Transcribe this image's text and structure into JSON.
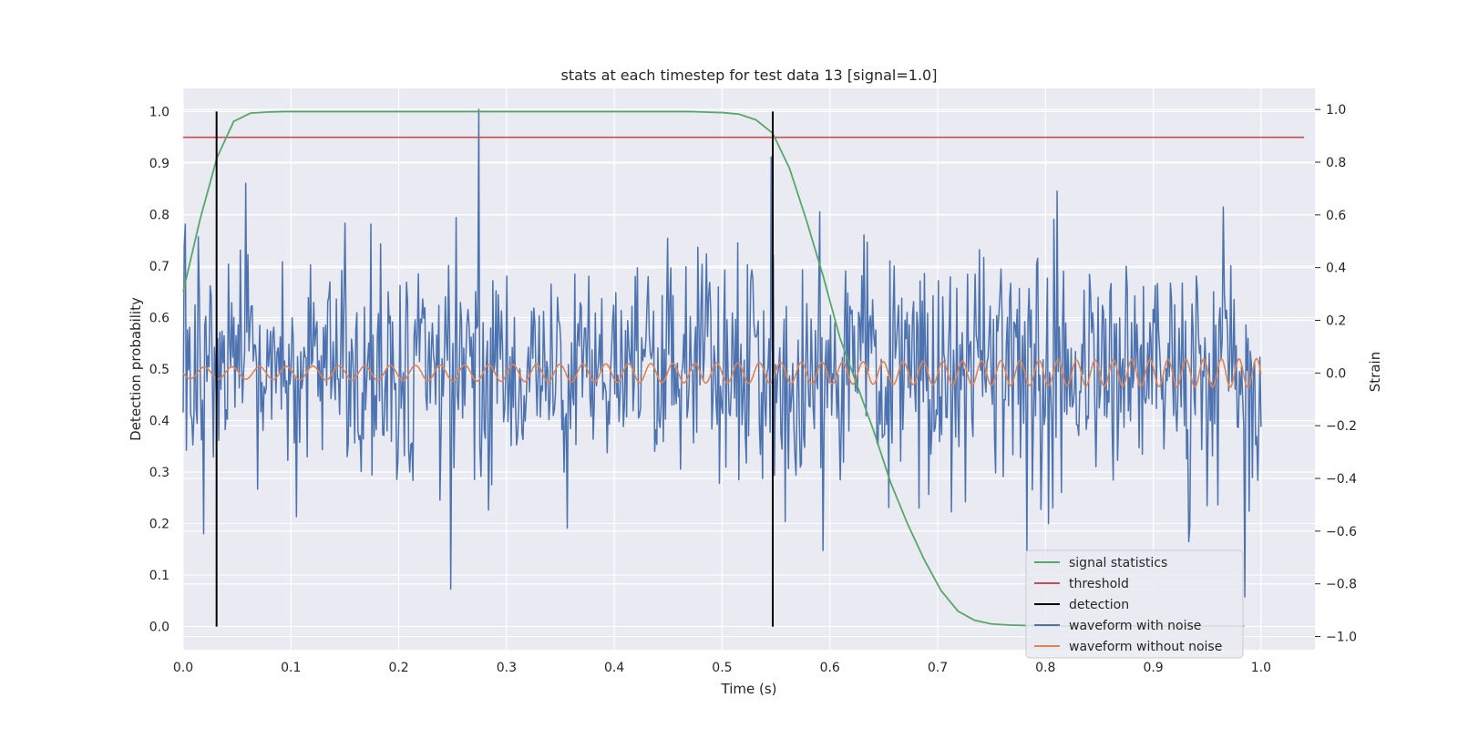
{
  "chart_data": {
    "type": "line",
    "title": "stats at each timestep for test data 13 [signal=1.0]",
    "xlabel": "Time (s)",
    "ylabel_left": "Detection probability",
    "ylabel_right": "Strain",
    "xlim": [
      0.0,
      1.05
    ],
    "ylim_left": [
      -0.045,
      1.045
    ],
    "ylim_right": [
      -1.05,
      1.08
    ],
    "x_ticks": [
      0.0,
      0.1,
      0.2,
      0.3,
      0.4,
      0.5,
      0.6,
      0.7,
      0.8,
      0.9,
      1.0
    ],
    "x_tick_labels": [
      "0.0",
      "0.1",
      "0.2",
      "0.3",
      "0.4",
      "0.5",
      "0.6",
      "0.7",
      "0.8",
      "0.9",
      "1.0"
    ],
    "y_left_ticks": [
      0.0,
      0.1,
      0.2,
      0.3,
      0.4,
      0.5,
      0.6,
      0.7,
      0.8,
      0.9,
      1.0
    ],
    "y_left_tick_labels": [
      "0.0",
      "0.1",
      "0.2",
      "0.3",
      "0.4",
      "0.5",
      "0.6",
      "0.7",
      "0.8",
      "0.9",
      "1.0"
    ],
    "y_right_ticks": [
      -1.0,
      -0.8,
      -0.6,
      -0.4,
      -0.2,
      0.0,
      0.2,
      0.4,
      0.6,
      0.8,
      1.0
    ],
    "y_right_tick_labels": [
      "−1.0",
      "−0.8",
      "−0.6",
      "−0.4",
      "−0.2",
      "0.0",
      "0.2",
      "0.4",
      "0.6",
      "0.8",
      "1.0"
    ],
    "grid": true,
    "legend_placement": "lower-right",
    "colors": {
      "background": "#eaeaf2",
      "grid": "#ffffff",
      "signal_statistics": "#55a868",
      "threshold": "#c44e52",
      "detection": "#000000",
      "waveform_with_noise": "#4c72b0",
      "waveform_without_noise": "#dd8452"
    },
    "series": [
      {
        "name": "signal statistics",
        "axis": "left",
        "x": [
          0.0,
          0.0156,
          0.0313,
          0.0469,
          0.0625,
          0.0781,
          0.0938,
          0.1094,
          0.125,
          0.1406,
          0.1563,
          0.1719,
          0.1875,
          0.2031,
          0.2188,
          0.2344,
          0.25,
          0.2656,
          0.2813,
          0.2969,
          0.3125,
          0.3281,
          0.3438,
          0.3594,
          0.375,
          0.3906,
          0.4063,
          0.4219,
          0.4375,
          0.4531,
          0.4688,
          0.4844,
          0.5,
          0.5156,
          0.5313,
          0.5469,
          0.5625,
          0.5781,
          0.5938,
          0.6094,
          0.625,
          0.6406,
          0.6563,
          0.6719,
          0.6875,
          0.7031,
          0.7188,
          0.7344,
          0.75,
          0.7656,
          0.7813,
          0.7969,
          0.8125,
          0.8281,
          0.8438,
          0.8594,
          0.875,
          0.8906,
          0.9063,
          0.9219,
          0.9375,
          0.9531,
          0.9688,
          0.9844
        ],
        "values": [
          0.65,
          0.79,
          0.91,
          0.981,
          0.997,
          0.999,
          1.0,
          1.0,
          1.0,
          1.0,
          1.0,
          1.0,
          1.0,
          1.0,
          1.0,
          1.0,
          1.0,
          1.0,
          1.0,
          1.0,
          1.0,
          1.0,
          1.0,
          1.0,
          1.0,
          1.0,
          1.0,
          1.0,
          1.0,
          1.0,
          1.0,
          0.999,
          0.998,
          0.995,
          0.984,
          0.958,
          0.89,
          0.79,
          0.68,
          0.56,
          0.47,
          0.38,
          0.28,
          0.2,
          0.13,
          0.07,
          0.03,
          0.012,
          0.005,
          0.003,
          0.002,
          0.001,
          0.001,
          0.001,
          0.001,
          0.001,
          0.001,
          0.001,
          0.001,
          0.001,
          0.001,
          0.001,
          0.001,
          0.001
        ]
      },
      {
        "name": "threshold",
        "axis": "left",
        "x": [
          0.0,
          1.04
        ],
        "values": [
          0.95,
          0.95
        ]
      },
      {
        "name": "detection",
        "axis": "left",
        "segments": [
          {
            "x": 0.031,
            "y0": 0.0,
            "y1": 1.0
          },
          {
            "x": 0.547,
            "y0": 0.0,
            "y1": 1.0
          }
        ]
      },
      {
        "name": "waveform with noise",
        "axis": "right",
        "x_start": 0.0,
        "x_end": 1.0,
        "sample_count": 1000,
        "rms": 0.22,
        "seed": 13,
        "spikes": [
          {
            "x": 0.0576,
            "value": 0.72
          },
          {
            "x": 0.2745,
            "value": 1.0
          },
          {
            "x": 0.2485,
            "value": -0.82
          },
          {
            "x": 0.546,
            "value": 0.82
          },
          {
            "x": 0.8105,
            "value": 0.69
          },
          {
            "x": 0.9325,
            "value": -0.64
          },
          {
            "x": 0.9645,
            "value": 0.63
          },
          {
            "x": 0.985,
            "value": -0.85
          }
        ]
      },
      {
        "name": "waveform without noise",
        "axis": "right",
        "x_start": 0.0,
        "x_end": 1.0,
        "sample_count": 1000,
        "amplitude_start": 0.022,
        "amplitude_end": 0.055,
        "frequency_start_hz": 38,
        "frequency_end_hz": 62
      }
    ]
  },
  "legend": {
    "items": [
      {
        "label": "signal statistics",
        "color": "#55a868"
      },
      {
        "label": "threshold",
        "color": "#c44e52"
      },
      {
        "label": "detection",
        "color": "#000000"
      },
      {
        "label": "waveform with noise",
        "color": "#4c72b0"
      },
      {
        "label": "waveform without noise",
        "color": "#dd8452"
      }
    ]
  }
}
